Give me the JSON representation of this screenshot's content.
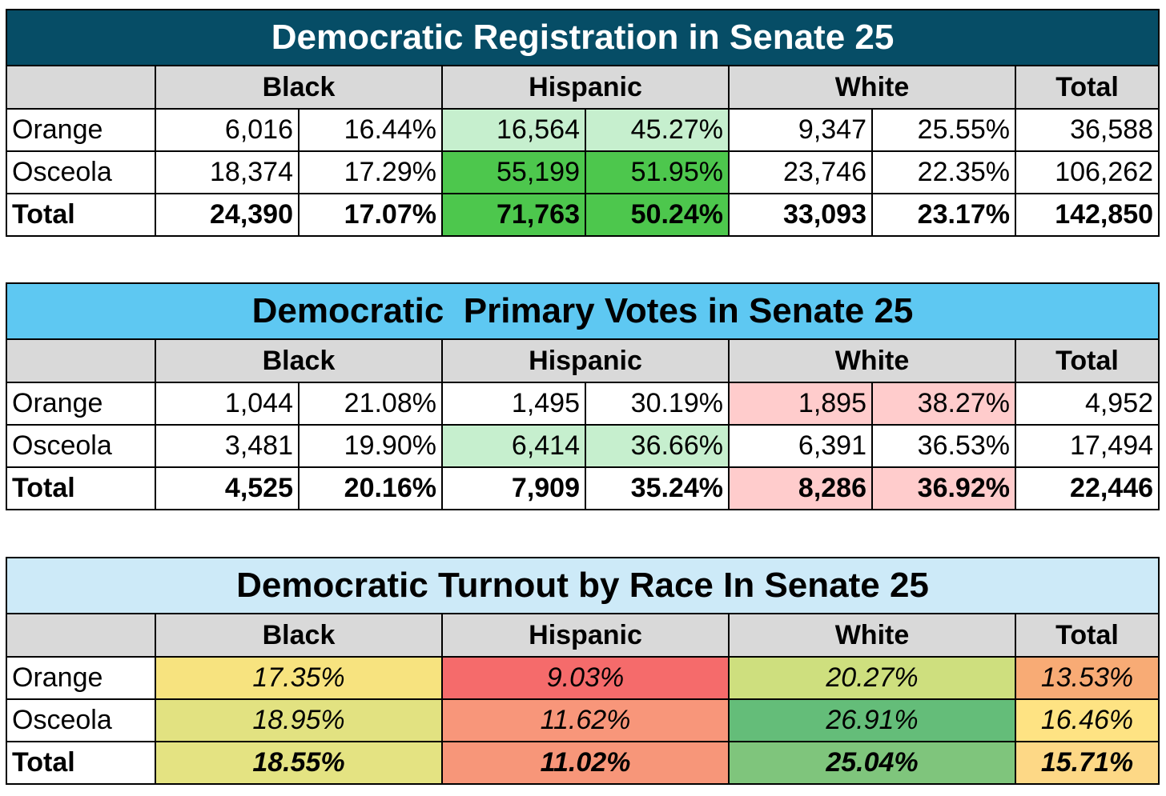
{
  "colors": {
    "registration_title_bg": "#064d66",
    "primary_title_bg": "#5ec8f2",
    "turnout_title_bg": "#cdeaf8",
    "header_bg": "#d9d9d9",
    "light_green": "#c6efce",
    "green": "#4dc74d",
    "pink": "#ffcccc"
  },
  "registration": {
    "title": "Democratic Registration in Senate 25",
    "headers": [
      "Black",
      "Hispanic",
      "White",
      "Total"
    ],
    "rows": [
      {
        "label": "Orange",
        "black_n": "6,016",
        "black_pct": "16.44%",
        "hisp_n": "16,564",
        "hisp_pct": "45.27%",
        "white_n": "9,347",
        "white_pct": "25.55%",
        "total": "36,588"
      },
      {
        "label": "Osceola",
        "black_n": "18,374",
        "black_pct": "17.29%",
        "hisp_n": "55,199",
        "hisp_pct": "51.95%",
        "white_n": "23,746",
        "white_pct": "22.35%",
        "total": "106,262"
      },
      {
        "label": "Total",
        "black_n": "24,390",
        "black_pct": "17.07%",
        "hisp_n": "71,763",
        "hisp_pct": "50.24%",
        "white_n": "33,093",
        "white_pct": "23.17%",
        "total": "142,850"
      }
    ]
  },
  "primary": {
    "title": "Democratic  Primary Votes in Senate 25",
    "headers": [
      "Black",
      "Hispanic",
      "White",
      "Total"
    ],
    "rows": [
      {
        "label": "Orange",
        "black_n": "1,044",
        "black_pct": "21.08%",
        "hisp_n": "1,495",
        "hisp_pct": "30.19%",
        "white_n": "1,895",
        "white_pct": "38.27%",
        "total": "4,952"
      },
      {
        "label": "Osceola",
        "black_n": "3,481",
        "black_pct": "19.90%",
        "hisp_n": "6,414",
        "hisp_pct": "36.66%",
        "white_n": "6,391",
        "white_pct": "36.53%",
        "total": "17,494"
      },
      {
        "label": "Total",
        "black_n": "4,525",
        "black_pct": "20.16%",
        "hisp_n": "7,909",
        "hisp_pct": "35.24%",
        "white_n": "8,286",
        "white_pct": "36.92%",
        "total": "22,446"
      }
    ]
  },
  "turnout": {
    "title": "Democratic Turnout by Race In Senate 25",
    "headers": [
      "Black",
      "Hispanic",
      "White",
      "Total"
    ],
    "rows": [
      {
        "label": "Orange",
        "black": "17.35%",
        "hisp": "9.03%",
        "white": "20.27%",
        "total": "13.53%"
      },
      {
        "label": "Osceola",
        "black": "18.95%",
        "hisp": "11.62%",
        "white": "26.91%",
        "total": "16.46%"
      },
      {
        "label": "Total",
        "black": "18.55%",
        "hisp": "11.02%",
        "white": "25.04%",
        "total": "15.71%"
      }
    ],
    "cell_colors": [
      [
        "#f7e37f",
        "#f56b6b",
        "#cedf7e",
        "#f8ab75"
      ],
      [
        "#e2e281",
        "#f8967a",
        "#64bd79",
        "#fee383"
      ],
      [
        "#e4e382",
        "#f79679",
        "#7fc57c",
        "#fdd886"
      ]
    ]
  }
}
